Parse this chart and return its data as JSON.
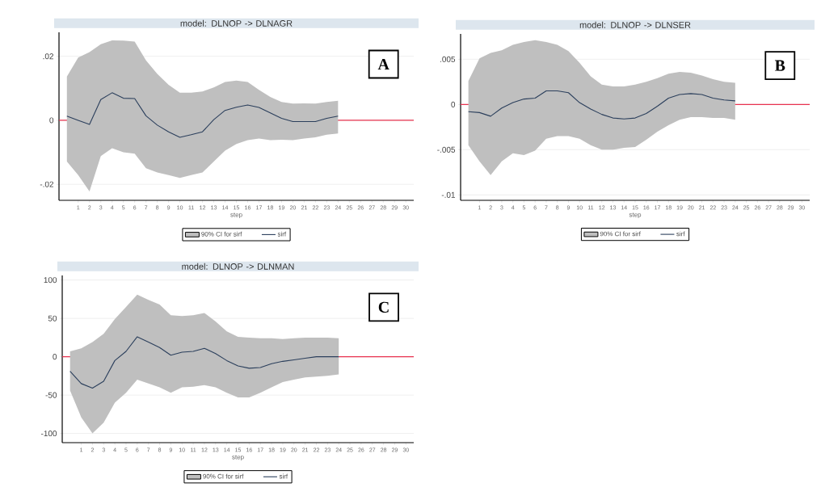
{
  "chart_data": [
    {
      "type": "line",
      "title": "model: DLNOP -> DLNAGR",
      "xlabel": "step",
      "x": [
        0,
        1,
        2,
        3,
        4,
        5,
        6,
        7,
        8,
        9,
        10,
        11,
        12,
        13,
        14,
        15,
        16,
        17,
        18,
        19,
        20,
        21,
        22,
        23,
        24
      ],
      "xlim": [
        -0.7,
        30.7
      ],
      "xticks": [
        1,
        2,
        3,
        4,
        5,
        6,
        7,
        8,
        9,
        10,
        11,
        12,
        13,
        14,
        15,
        16,
        17,
        18,
        19,
        20,
        21,
        22,
        23,
        24,
        25,
        26,
        27,
        28,
        29,
        30
      ],
      "ylim": [
        -0.025,
        0.0275
      ],
      "yticks": [
        {
          "value": -0.02,
          "label": "-.02"
        },
        0,
        {
          "value": 0.02,
          "label": ".02"
        }
      ],
      "grid": "y",
      "legend": "bottom",
      "annotations": [
        "A"
      ],
      "ref_lines": [
        {
          "axis": "y",
          "value": 0,
          "color": "#e8324f"
        }
      ],
      "series": [
        {
          "name": "90% CI for sirf",
          "color": "#bfbfbf",
          "values": [
            null,
            null,
            null,
            null,
            null,
            null,
            null,
            null,
            null,
            null,
            null,
            null,
            null,
            null,
            null,
            null,
            null,
            null,
            null,
            null,
            null,
            null,
            null,
            null,
            null
          ],
          "upper": [
            0.0137,
            0.0196,
            0.0213,
            0.0238,
            0.025,
            0.0249,
            0.0246,
            0.0187,
            0.0145,
            0.0111,
            0.0086,
            0.0086,
            0.009,
            0.0103,
            0.012,
            0.0124,
            0.012,
            0.0095,
            0.0073,
            0.0057,
            0.0052,
            0.0053,
            0.0052,
            0.0057,
            0.0061
          ],
          "lower": [
            -0.0129,
            -0.0171,
            -0.0222,
            -0.0112,
            -0.0087,
            -0.01,
            -0.0104,
            -0.015,
            -0.0163,
            -0.0171,
            -0.018,
            -0.0171,
            -0.0163,
            -0.0129,
            -0.0095,
            -0.0074,
            -0.0062,
            -0.0057,
            -0.0062,
            -0.0061,
            -0.0062,
            -0.0057,
            -0.0053,
            -0.0045,
            -0.0041
          ]
        },
        {
          "name": "sirf",
          "color": "#2b3f5c",
          "values": [
            0.0013,
            0,
            -0.0013,
            0.0065,
            0.0086,
            0.0069,
            0.0068,
            0.0014,
            -0.0015,
            -0.0036,
            -0.0053,
            -0.0045,
            -0.0036,
            0.0002,
            0.0031,
            0.0041,
            0.0048,
            0.004,
            0.0023,
            0.0006,
            -0.0004,
            -0.0004,
            -0.0004,
            0.0006,
            0.0013
          ]
        }
      ]
    },
    {
      "type": "line",
      "title": "model: DLNOP -> DLNSER",
      "xlabel": "step",
      "x": [
        0,
        1,
        2,
        3,
        4,
        5,
        6,
        7,
        8,
        9,
        10,
        11,
        12,
        13,
        14,
        15,
        16,
        17,
        18,
        19,
        20,
        21,
        22,
        23,
        24
      ],
      "xlim": [
        -0.7,
        30.7
      ],
      "xticks": [
        1,
        2,
        3,
        4,
        5,
        6,
        7,
        8,
        9,
        10,
        11,
        12,
        13,
        14,
        15,
        16,
        17,
        18,
        19,
        20,
        21,
        22,
        23,
        24,
        25,
        26,
        27,
        28,
        29,
        30
      ],
      "ylim": [
        -0.0106,
        0.0078
      ],
      "yticks": [
        {
          "value": -0.01,
          "label": "-.01"
        },
        {
          "value": -0.005,
          "label": "-.005"
        },
        0,
        {
          "value": 0.005,
          "label": ".005"
        }
      ],
      "grid": "y",
      "legend": "bottom",
      "annotations": [
        "B"
      ],
      "ref_lines": [
        {
          "axis": "y",
          "value": 0,
          "color": "#e8324f"
        }
      ],
      "series": [
        {
          "name": "90% CI for sirf",
          "color": "#bfbfbf",
          "values": [
            null,
            null,
            null,
            null,
            null,
            null,
            null,
            null,
            null,
            null,
            null,
            null,
            null,
            null,
            null,
            null,
            null,
            null,
            null,
            null,
            null,
            null,
            null,
            null,
            null
          ],
          "upper": [
            0.0026,
            0.0051,
            0.0057,
            0.006,
            0.0066,
            0.0069,
            0.0071,
            0.0069,
            0.0066,
            0.0059,
            0.0046,
            0.0031,
            0.0022,
            0.002,
            0.002,
            0.0022,
            0.0025,
            0.0029,
            0.0034,
            0.0036,
            0.0035,
            0.0032,
            0.0028,
            0.0025,
            0.0024
          ],
          "lower": [
            -0.0045,
            -0.0063,
            -0.0078,
            -0.0063,
            -0.0054,
            -0.0056,
            -0.0051,
            -0.0038,
            -0.0035,
            -0.0035,
            -0.0038,
            -0.0045,
            -0.005,
            -0.005,
            -0.0048,
            -0.0047,
            -0.0039,
            -0.003,
            -0.0023,
            -0.0017,
            -0.0014,
            -0.0014,
            -0.0015,
            -0.0015,
            -0.0017
          ]
        },
        {
          "name": "sirf",
          "color": "#2b3f5c",
          "values": [
            -0.0008,
            -0.0009,
            -0.0013,
            -0.0004,
            0.0002,
            0.0006,
            0.0007,
            0.0015,
            0.0015,
            0.0013,
            0.0002,
            -0.0005,
            -0.0011,
            -0.0015,
            -0.0016,
            -0.0015,
            -0.001,
            -0.0002,
            0.0007,
            0.0011,
            0.0012,
            0.0011,
            0.0007,
            0.0005,
            0.0004
          ]
        }
      ]
    },
    {
      "type": "line",
      "title": "model: DLNOP -> DLNMAN",
      "xlabel": "step",
      "x": [
        0,
        1,
        2,
        3,
        4,
        5,
        6,
        7,
        8,
        9,
        10,
        11,
        12,
        13,
        14,
        15,
        16,
        17,
        18,
        19,
        20,
        21,
        22,
        23,
        24
      ],
      "xlim": [
        -0.7,
        30.7
      ],
      "xticks": [
        1,
        2,
        3,
        4,
        5,
        6,
        7,
        8,
        9,
        10,
        11,
        12,
        13,
        14,
        15,
        16,
        17,
        18,
        19,
        20,
        21,
        22,
        23,
        24,
        25,
        26,
        27,
        28,
        29,
        30
      ],
      "ylim": [
        -112,
        106
      ],
      "yticks": [
        -100,
        -50,
        0,
        50,
        100
      ],
      "grid": "y",
      "legend": "bottom",
      "annotations": [
        "C"
      ],
      "ref_lines": [
        {
          "axis": "y",
          "value": 0,
          "color": "#e8324f"
        }
      ],
      "series": [
        {
          "name": "90% CI for sirf",
          "color": "#bfbfbf",
          "values": [
            null,
            null,
            null,
            null,
            null,
            null,
            null,
            null,
            null,
            null,
            null,
            null,
            null,
            null,
            null,
            null,
            null,
            null,
            null,
            null,
            null,
            null,
            null,
            null,
            null
          ],
          "upper": [
            7,
            11,
            19,
            30,
            49,
            65,
            81,
            74,
            68,
            54,
            53,
            54,
            57,
            46,
            33,
            26,
            25,
            24,
            24,
            23,
            24,
            25,
            25,
            25,
            24
          ],
          "lower": [
            -44,
            -79,
            -100,
            -86,
            -60,
            -47,
            -30,
            -35,
            -40,
            -47,
            -40,
            -39,
            -37,
            -40,
            -47,
            -53,
            -53,
            -47,
            -40,
            -33,
            -30,
            -27,
            -26,
            -25,
            -23
          ]
        },
        {
          "name": "sirf",
          "color": "#2b3f5c",
          "values": [
            -19,
            -35,
            -41,
            -32,
            -5,
            7,
            26,
            19,
            12,
            2,
            6,
            7,
            11,
            4,
            -5,
            -12,
            -15,
            -14,
            -9,
            -6,
            -4,
            -2,
            0,
            0,
            0
          ]
        }
      ]
    }
  ]
}
